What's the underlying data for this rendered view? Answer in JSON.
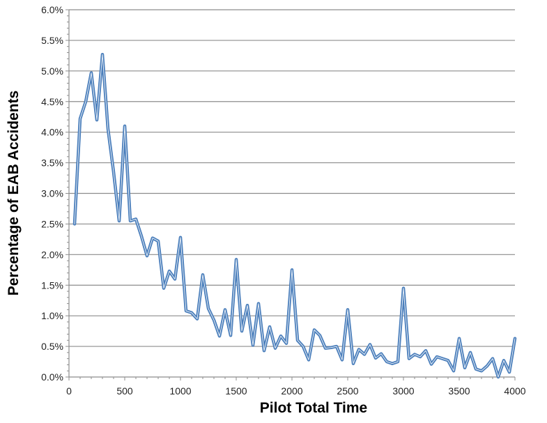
{
  "chart_data": {
    "type": "line",
    "title": "",
    "xlabel": "Pilot Total Time",
    "ylabel": "Percentage of EAB Accidents",
    "xlim": [
      0,
      4000
    ],
    "ylim": [
      0,
      6.0
    ],
    "x_ticks": [
      0,
      500,
      1000,
      1500,
      2000,
      2500,
      3000,
      3500,
      4000
    ],
    "x_tick_labels": [
      "0",
      "500",
      "1000",
      "1500",
      "2000",
      "2500",
      "3000",
      "3500",
      "4000"
    ],
    "y_ticks": [
      0,
      0.5,
      1.0,
      1.5,
      2.0,
      2.5,
      3.0,
      3.5,
      4.0,
      4.5,
      5.0,
      5.5,
      6.0
    ],
    "y_tick_labels": [
      "0.0%",
      "0.5%",
      "1.0%",
      "1.5%",
      "2.0%",
      "2.5%",
      "3.0%",
      "3.5%",
      "4.0%",
      "4.5%",
      "5.0%",
      "5.5%",
      "6.0%"
    ],
    "grid": "horizontal",
    "legend": "none",
    "series": [
      {
        "color": "#4a7ebb",
        "x": [
          50,
          100,
          150,
          200,
          250,
          300,
          350,
          400,
          450,
          500,
          550,
          600,
          650,
          700,
          750,
          800,
          850,
          900,
          950,
          1000,
          1050,
          1100,
          1150,
          1200,
          1250,
          1300,
          1350,
          1400,
          1450,
          1500,
          1550,
          1600,
          1650,
          1700,
          1750,
          1800,
          1850,
          1900,
          1950,
          2000,
          2050,
          2100,
          2150,
          2200,
          2250,
          2300,
          2350,
          2400,
          2450,
          2500,
          2550,
          2600,
          2650,
          2700,
          2750,
          2800,
          2850,
          2900,
          2950,
          3000,
          3050,
          3100,
          3150,
          3200,
          3250,
          3300,
          3350,
          3400,
          3450,
          3500,
          3550,
          3600,
          3650,
          3700,
          3750,
          3800,
          3850,
          3900,
          3950,
          4000
        ],
        "values": [
          2.5,
          4.22,
          4.5,
          4.97,
          4.2,
          5.27,
          4.05,
          3.35,
          2.55,
          4.1,
          2.55,
          2.58,
          2.3,
          1.98,
          2.27,
          2.22,
          1.45,
          1.73,
          1.6,
          2.28,
          1.08,
          1.05,
          0.95,
          1.67,
          1.12,
          0.93,
          0.67,
          1.1,
          0.68,
          1.92,
          0.75,
          1.17,
          0.52,
          1.2,
          0.43,
          0.82,
          0.47,
          0.67,
          0.55,
          1.75,
          0.6,
          0.5,
          0.28,
          0.77,
          0.68,
          0.47,
          0.48,
          0.5,
          0.28,
          1.1,
          0.22,
          0.45,
          0.37,
          0.53,
          0.31,
          0.38,
          0.25,
          0.22,
          0.25,
          1.45,
          0.3,
          0.37,
          0.33,
          0.43,
          0.21,
          0.33,
          0.3,
          0.27,
          0.1,
          0.63,
          0.15,
          0.4,
          0.13,
          0.1,
          0.18,
          0.3,
          0.0,
          0.27,
          0.08,
          0.63
        ]
      }
    ]
  }
}
